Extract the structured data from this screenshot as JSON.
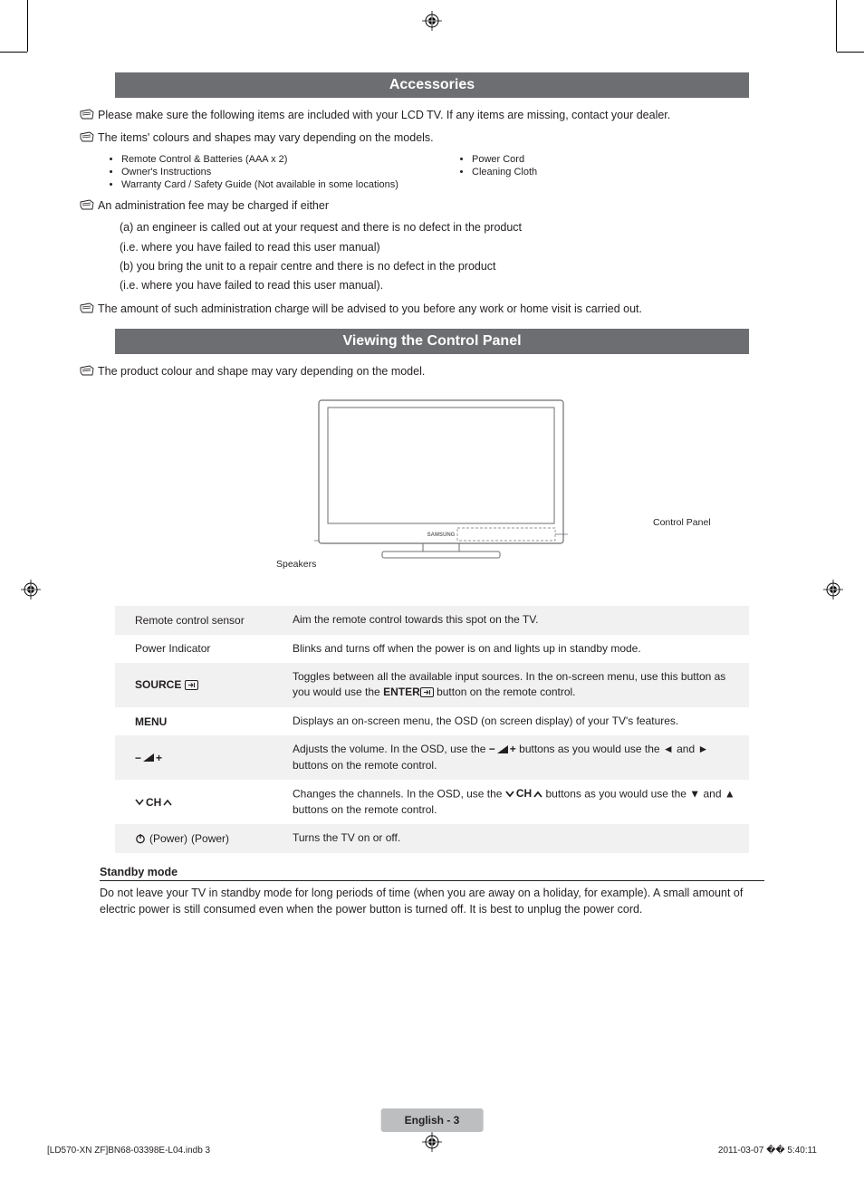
{
  "colors": {
    "bar_bg": "#6d6e71",
    "bar_text": "#ffffff",
    "body_text": "#231f20",
    "row_alt_bg": "#f1f1f2",
    "footer_pill_bg": "#bcbec0"
  },
  "typography": {
    "body_fontsize_pt": 9,
    "bar_fontsize_pt": 12,
    "small_fontsize_pt": 8
  },
  "sections": {
    "accessories": {
      "title": "Accessories",
      "note1": "Please make sure the following items are included with your LCD TV. If any items are missing, contact your dealer.",
      "note2": "The items' colours and shapes may vary depending on the models.",
      "items_left": [
        "Remote Control & Batteries (AAA x 2)",
        "Owner's Instructions",
        "Warranty Card / Safety Guide (Not available in some locations)"
      ],
      "items_right": [
        "Power Cord",
        "Cleaning Cloth"
      ],
      "admin_note": "An administration fee may be charged if either",
      "admin_a": "(a) an engineer is called out at your request and there is no defect in the product",
      "admin_a2": "(i.e. where you have failed to read this user manual)",
      "admin_b": "(b) you bring the unit to a repair centre and there is no defect in the product",
      "admin_b2": "(i.e. where you have failed to read this user manual).",
      "charge_note": "The amount of such administration charge will be advised to you before any work or home visit is carried out."
    },
    "control_panel": {
      "title": "Viewing the Control Panel",
      "note": "The product colour and shape may vary depending on the model.",
      "labels": {
        "control_panel": "Control Panel",
        "speakers": "Speakers"
      }
    },
    "table": {
      "rows": [
        {
          "label": "Remote control sensor",
          "bold": false,
          "desc_parts": [
            {
              "t": "text",
              "v": "Aim the remote control towards this spot on the TV."
            }
          ]
        },
        {
          "label": "Power Indicator",
          "bold": false,
          "desc_parts": [
            {
              "t": "text",
              "v": "Blinks and turns off when the power is on and lights up in standby mode."
            }
          ]
        },
        {
          "label": "SOURCE",
          "bold": true,
          "icon": "source",
          "desc_parts": [
            {
              "t": "text",
              "v": "Toggles between all the available input sources. In the on-screen menu, use this button as you would use the "
            },
            {
              "t": "bold",
              "v": "ENTER"
            },
            {
              "t": "icon",
              "v": "enter"
            },
            {
              "t": "text",
              "v": " button on the remote control."
            }
          ]
        },
        {
          "label": "MENU",
          "bold": true,
          "desc_parts": [
            {
              "t": "text",
              "v": "Displays an on-screen menu, the OSD (on screen display) of your TV's features."
            }
          ]
        },
        {
          "label": "",
          "bold": true,
          "icon": "volume",
          "desc_parts": [
            {
              "t": "text",
              "v": "Adjusts the volume. In the OSD, use the "
            },
            {
              "t": "icon",
              "v": "volume"
            },
            {
              "t": "text",
              "v": " buttons as you would use the ◄ and ► buttons on the remote control."
            }
          ]
        },
        {
          "label": " CH ",
          "bold": true,
          "icon": "channel",
          "desc_parts": [
            {
              "t": "text",
              "v": "Changes the channels. In the OSD, use the "
            },
            {
              "t": "icon",
              "v": "channel-bold"
            },
            {
              "t": "text",
              "v": " buttons as you would use the ▼ and ▲ buttons on the remote control."
            }
          ]
        },
        {
          "label": " (Power)",
          "bold": false,
          "icon": "power",
          "desc_parts": [
            {
              "t": "text",
              "v": "Turns the TV on or off."
            }
          ]
        }
      ]
    },
    "standby": {
      "heading": "Standby mode",
      "body": "Do not leave your TV in standby mode for long periods of time (when you are away on a holiday, for example). A small amount of electric power is still consumed even when the power button is turned off. It is best to unplug the power cord."
    }
  },
  "footer": {
    "page_label": "English - 3",
    "file_line": "[LD570-XN ZF]BN68-03398E-L04.indb   3",
    "timestamp": "2011-03-07   �� 5:40:11"
  }
}
